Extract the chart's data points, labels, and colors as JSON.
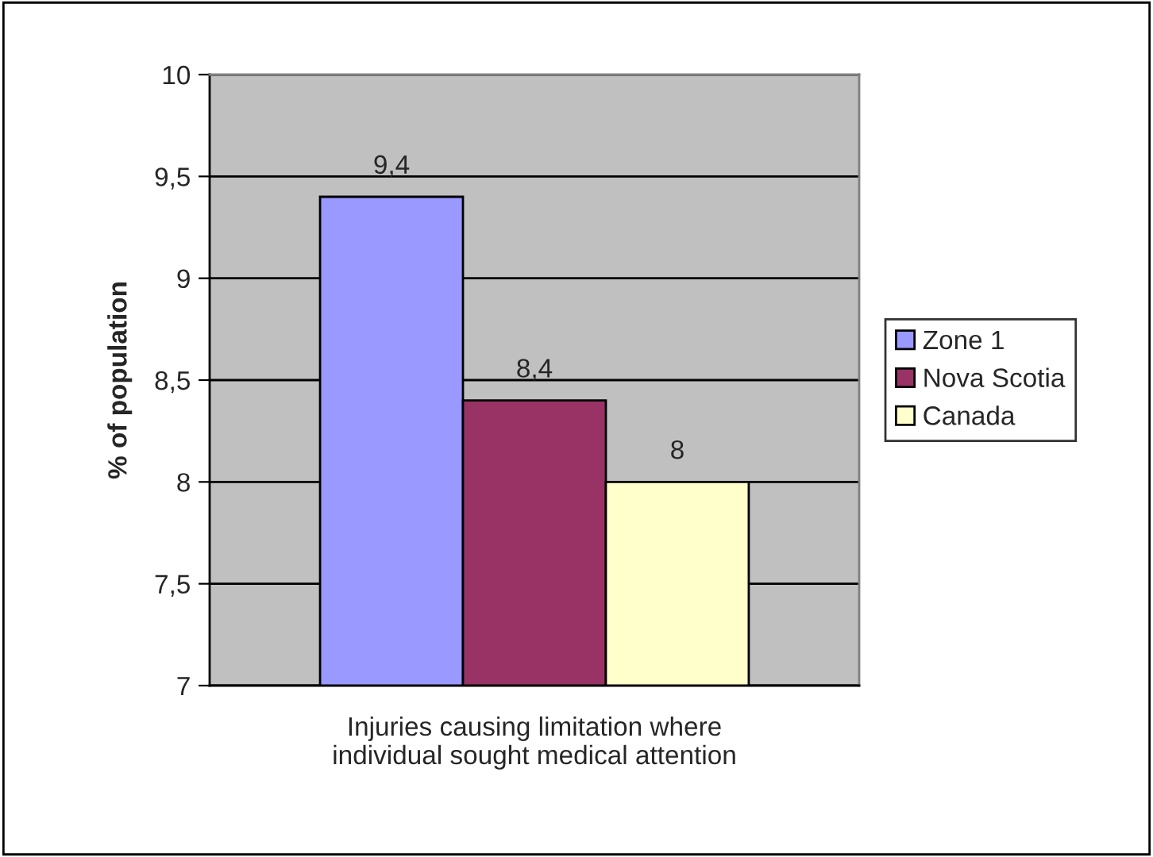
{
  "chart_data": {
    "type": "bar",
    "categories": [
      "Injuries causing limitation where\nindividual sought medical attention"
    ],
    "ylabel": "% of population",
    "series": [
      {
        "name": "Zone 1",
        "color": "#9999ff",
        "values": [
          9.4
        ],
        "value_labels": [
          "9,4"
        ]
      },
      {
        "name": "Nova Scotia",
        "color": "#993366",
        "values": [
          8.4
        ],
        "value_labels": [
          "8,4"
        ]
      },
      {
        "name": "Canada",
        "color": "#ffffcc",
        "values": [
          8
        ],
        "value_labels": [
          "8"
        ]
      }
    ],
    "ylim": [
      7,
      10
    ],
    "yticks": [
      7,
      {
        "value": 7.5,
        "label": "7,5"
      },
      8,
      {
        "value": 8.5,
        "label": "8,5"
      },
      9,
      {
        "value": 9.5,
        "label": "9,5"
      },
      10
    ],
    "grid": "y",
    "legend": "right"
  }
}
